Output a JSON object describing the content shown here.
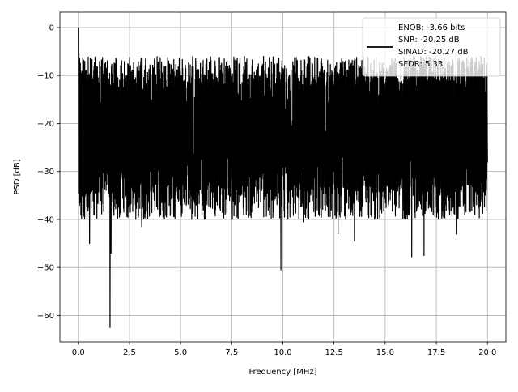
{
  "chart_data": {
    "type": "line",
    "xlabel": "Frequency [MHz]",
    "ylabel": "PSD [dB]",
    "xlim": [
      -0.9,
      20.9
    ],
    "ylim": [
      -65.5,
      3.2
    ],
    "xticks": [
      0.0,
      2.5,
      5.0,
      7.5,
      10.0,
      12.5,
      15.0,
      17.5,
      20.0
    ],
    "xtick_labels": [
      "0.0",
      "2.5",
      "5.0",
      "7.5",
      "10.0",
      "12.5",
      "15.0",
      "17.5",
      "20.0"
    ],
    "yticks": [
      0,
      -10,
      -20,
      -30,
      -40,
      -50,
      -60
    ],
    "ytick_labels": [
      "0",
      "−10",
      "−20",
      "−30",
      "−40",
      "−50",
      "−60"
    ],
    "grid": true,
    "legend_position": "top-right",
    "series": [
      {
        "color": "#000000",
        "x_start": 0.0,
        "x_end": 20.0,
        "noise_band_center_db": -22,
        "noise_band_upper_db": -9,
        "noise_band_lower_db": -36,
        "peaks": [
          {
            "x": 0.0,
            "y": 0.0
          },
          {
            "x": 0.03,
            "y": -5.5
          },
          {
            "x": 0.12,
            "y": -9.0
          }
        ],
        "notches": [
          {
            "x": 0.55,
            "y": -45.0
          },
          {
            "x": 1.55,
            "y": -62.5
          },
          {
            "x": 1.6,
            "y": -47.0
          },
          {
            "x": 9.9,
            "y": -50.5
          },
          {
            "x": 13.5,
            "y": -44.5
          },
          {
            "x": 16.3,
            "y": -47.8
          },
          {
            "x": 16.9,
            "y": -47.5
          },
          {
            "x": 3.1,
            "y": -41.5
          },
          {
            "x": 11.0,
            "y": -40.5
          },
          {
            "x": 12.7,
            "y": -43.0
          },
          {
            "x": 18.5,
            "y": -43.0
          }
        ]
      }
    ],
    "legend_lines": [
      "ENOB: -3.66 bits",
      "SNR: -20.25 dB",
      "SINAD: -20.27 dB",
      "SFDR: 5.33"
    ]
  }
}
